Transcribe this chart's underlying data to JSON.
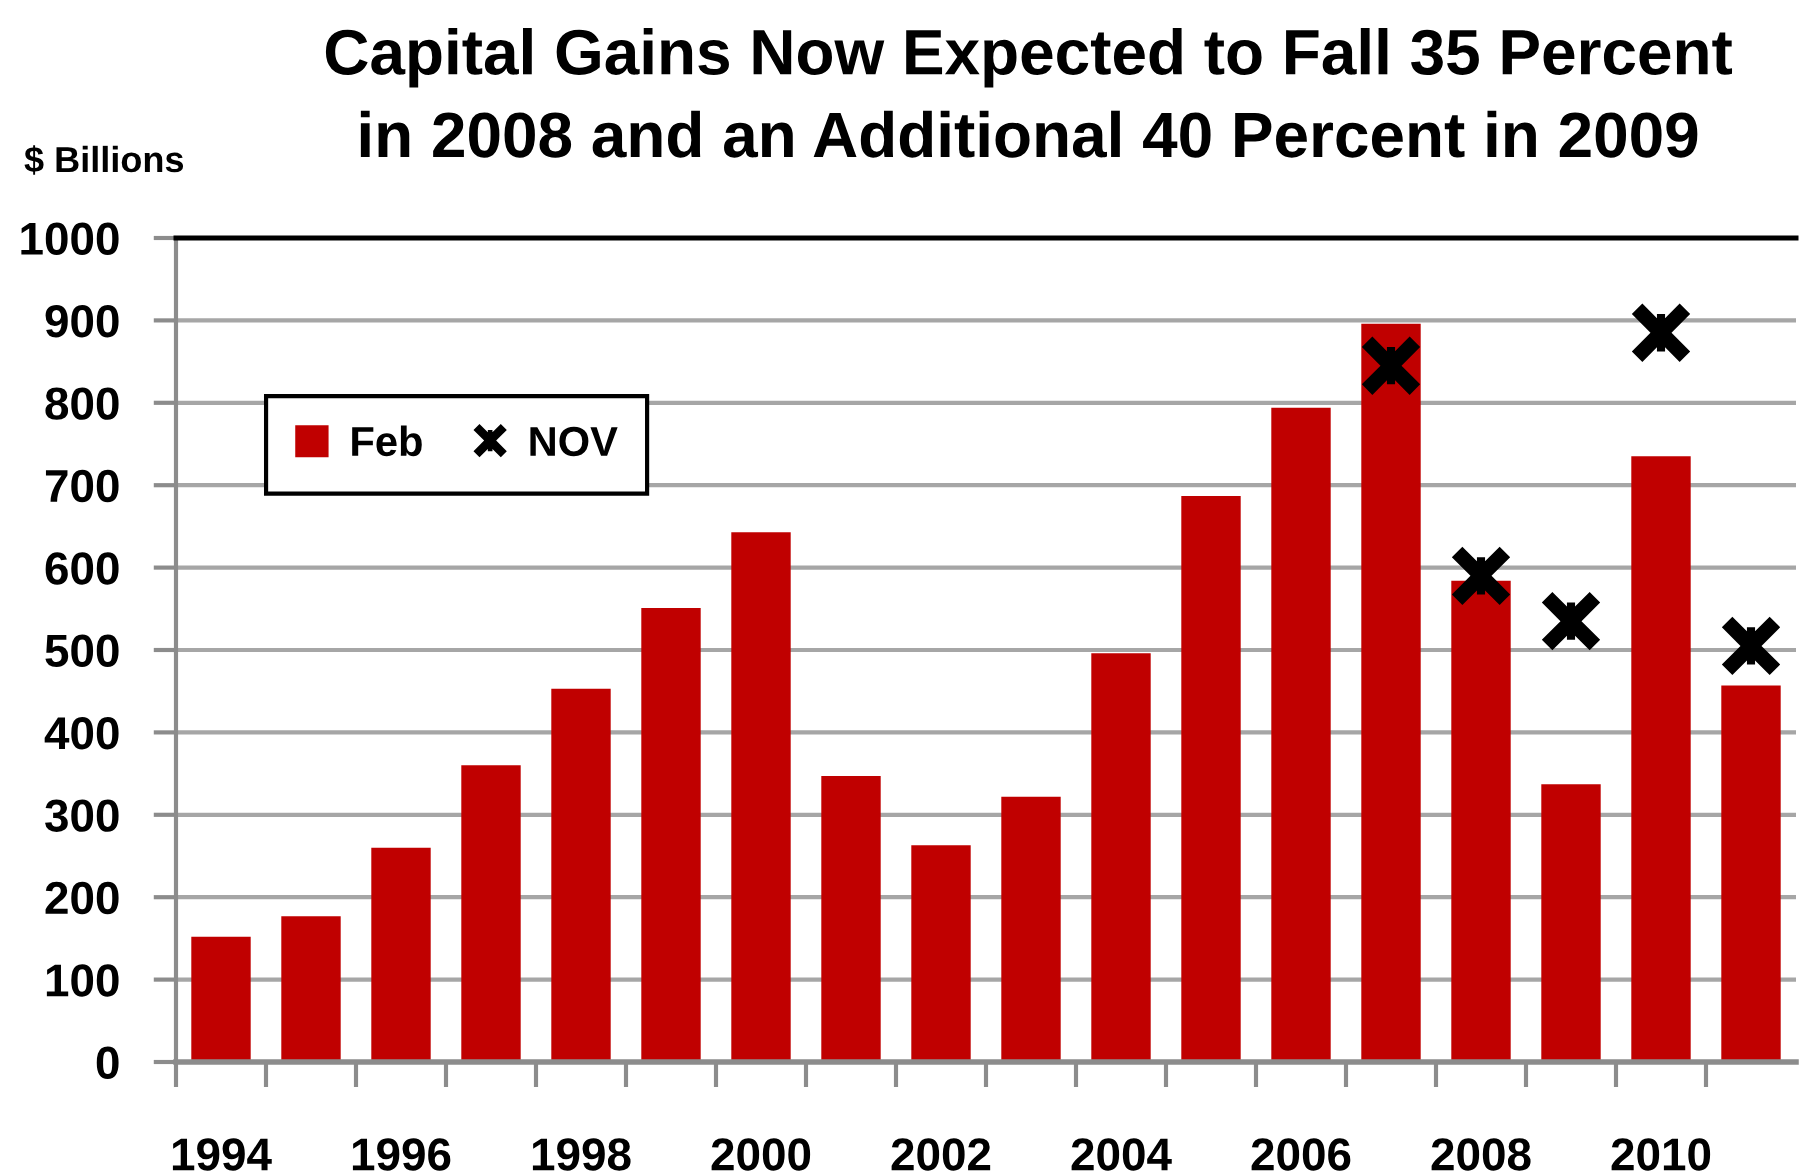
{
  "chart_data": {
    "type": "bar",
    "title": "Capital Gains Now Expected to Fall 35 Percent\nin 2008 and an Additional 40 Percent in 2009",
    "ylabel": "$ Billions",
    "x": [
      1994,
      1995,
      1996,
      1997,
      1998,
      1999,
      2000,
      2001,
      2002,
      2003,
      2004,
      2005,
      2006,
      2007,
      2008,
      2009,
      2010,
      2011
    ],
    "series": [
      {
        "name": "Feb",
        "color": "#c00000",
        "values": [
          152,
          177,
          260,
          360,
          453,
          551,
          643,
          347,
          263,
          322,
          496,
          687,
          794,
          896,
          584,
          337,
          735,
          457
        ]
      },
      {
        "name": "NOV",
        "type": "scatter",
        "color": "#000000",
        "x": [
          2007,
          2008,
          2009,
          2010,
          2011
        ],
        "values": [
          845,
          590,
          535,
          885,
          505
        ]
      }
    ],
    "marker": "cross",
    "xlim": [
      1993.5,
      2011.5
    ],
    "xticks": [
      {
        "value": 1993.5,
        "label": null
      },
      1994,
      {
        "value": 1994.5,
        "label": null
      },
      {
        "value": 1995.5,
        "label": null
      },
      1996,
      {
        "value": 1996.5,
        "label": null
      },
      {
        "value": 1997.5,
        "label": null
      },
      1998,
      {
        "value": 1998.5,
        "label": null
      },
      {
        "value": 1999.5,
        "label": null
      },
      2000,
      {
        "value": 2000.5,
        "label": null
      },
      {
        "value": 2001.5,
        "label": null
      },
      2002,
      {
        "value": 2002.5,
        "label": null
      },
      {
        "value": 2003.5,
        "label": null
      },
      2004,
      {
        "value": 2004.5,
        "label": null
      },
      {
        "value": 2005.5,
        "label": null
      },
      2006,
      {
        "value": 2006.5,
        "label": null
      },
      {
        "value": 2007.5,
        "label": null
      },
      2008,
      {
        "value": 2008.5,
        "label": null
      },
      {
        "value": 2009.5,
        "label": null
      },
      2010,
      {
        "value": 2010.5,
        "label": null
      }
    ],
    "ylim": [
      0,
      1000
    ],
    "yticks": [
      0,
      100,
      200,
      300,
      400,
      500,
      600,
      700,
      800,
      900,
      1000
    ],
    "grid": "y",
    "legend": "top left"
  }
}
